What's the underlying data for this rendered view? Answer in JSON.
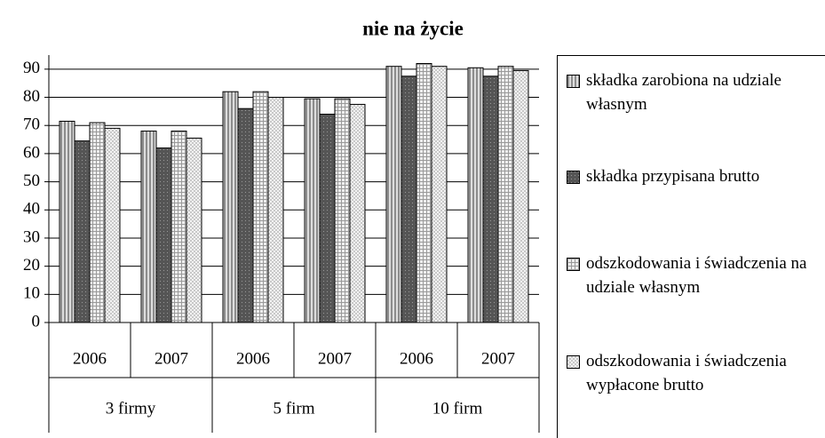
{
  "chart_data": {
    "type": "bar",
    "title": "nie na życie",
    "categories": [
      "2006",
      "2007",
      "2006",
      "2007",
      "2006",
      "2007"
    ],
    "groups": [
      "3 firmy",
      "5 firm",
      "10 firm"
    ],
    "series": [
      {
        "name": "składka zarobiona na udziale własnym",
        "color": "#8c8c8c",
        "values": [
          71.5,
          68,
          82,
          79.5,
          91,
          90.5
        ]
      },
      {
        "name": "składka przypisana brutto",
        "color": "#555555",
        "values": [
          64.5,
          62,
          76,
          74,
          87.5,
          87.5
        ]
      },
      {
        "name": "odszkodowania i świadczenia na udziale własnym",
        "color": "#9a9a9a",
        "values": [
          71,
          68,
          82,
          79.5,
          92,
          91
        ]
      },
      {
        "name": "odszkodowania i świadczenia wypłacone brutto",
        "color": "#c8c8c8",
        "values": [
          69,
          65.5,
          80,
          77.5,
          91,
          89.5
        ]
      }
    ],
    "ylim": [
      0,
      95
    ],
    "yticks": [
      0,
      10,
      20,
      30,
      40,
      50,
      60,
      70,
      80,
      90
    ],
    "grid": true,
    "legend": "right"
  }
}
